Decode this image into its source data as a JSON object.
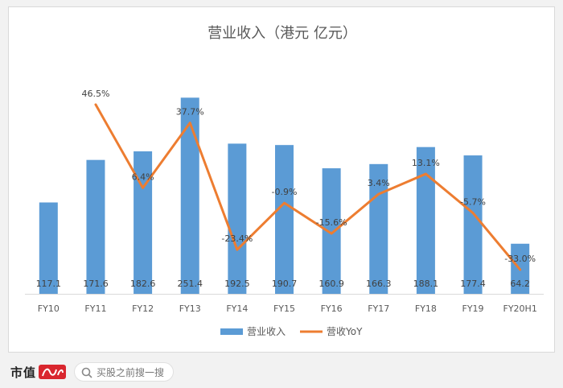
{
  "chart_data": {
    "type": "bar",
    "title": "营业收入（港元 亿元）",
    "categories": [
      "FY10",
      "FY11",
      "FY12",
      "FY13",
      "FY14",
      "FY15",
      "FY16",
      "FY17",
      "FY18",
      "FY19",
      "FY20H1"
    ],
    "series": [
      {
        "name": "营业收入",
        "kind": "bar",
        "color": "#5b9bd5",
        "values": [
          117.1,
          171.6,
          182.6,
          251.4,
          192.5,
          190.7,
          160.9,
          166.3,
          188.1,
          177.4,
          64.2
        ],
        "labels": [
          "117.1",
          "171.6",
          "182.6",
          "251.4",
          "192.5",
          "190.7",
          "160.9",
          "166.3",
          "188.1",
          "177.4",
          "64.2"
        ]
      },
      {
        "name": "营收YoY",
        "kind": "line",
        "color": "#ed7d31",
        "values": [
          null,
          46.5,
          6.4,
          37.7,
          -23.4,
          -0.9,
          -15.6,
          3.4,
          13.1,
          -5.7,
          -33.0
        ],
        "labels": [
          "",
          "46.5%",
          "6.4%",
          "37.7%",
          "-23.4%",
          "-0.9%",
          "-15.6%",
          "3.4%",
          "13.1%",
          "-5.7%",
          "-33.0%"
        ]
      }
    ],
    "bar_ylim": [
      0,
      260
    ],
    "line_ylim": [
      -40,
      55
    ],
    "legend_position": "bottom",
    "grid": false
  },
  "footer": {
    "brand": "市值",
    "search_placeholder": "买股之前搜一搜"
  }
}
